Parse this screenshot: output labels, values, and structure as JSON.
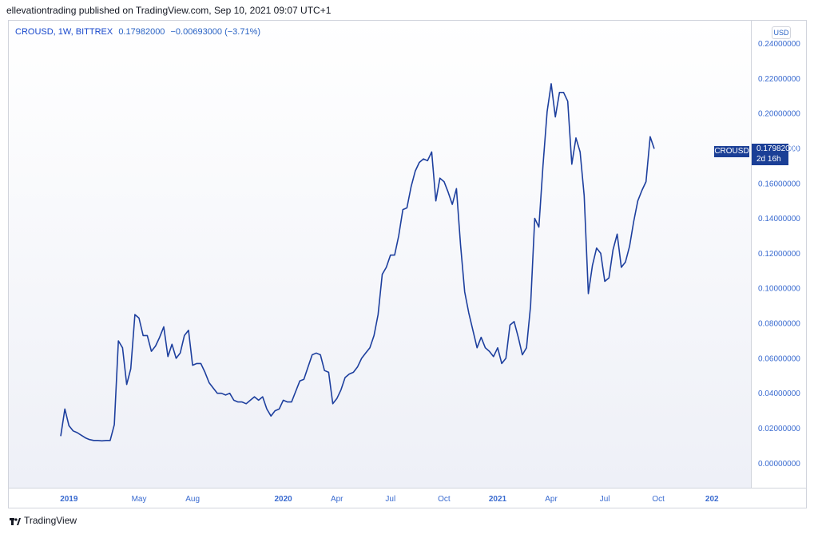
{
  "header": {
    "published_text": "ellevationtrading published on TradingView.com, Sep 10, 2021 09:07 UTC+1"
  },
  "legend": {
    "symbol": "CROUSD, 1W, BITTREX",
    "price": "0.17982000",
    "change": "−0.00693000 (−3.71%)"
  },
  "currency_button": "USD",
  "last_price_tag": {
    "symbol": "CROUSD",
    "price": "0.17982000",
    "countdown": "2d 16h"
  },
  "footer": {
    "brand": "TradingView"
  },
  "colors": {
    "line": "#1d3f9e",
    "axis_text": "#3a6bd0"
  },
  "chart_data": {
    "type": "line",
    "title": "CROUSD, 1W, BITTREX",
    "xlabel": "",
    "ylabel": "",
    "grid": false,
    "ylim": [
      -0.014,
      0.253
    ],
    "y_ticks": [
      "0.24000000",
      "0.22000000",
      "0.20000000",
      "0.18000000",
      "0.16000000",
      "0.14000000",
      "0.12000000",
      "0.10000000",
      "0.08000000",
      "0.06000000",
      "0.04000000",
      "0.02000000",
      "0.00000000"
    ],
    "y_tick_values": [
      0.24,
      0.22,
      0.2,
      0.18,
      0.16,
      0.14,
      0.12,
      0.1,
      0.08,
      0.06,
      0.04,
      0.02,
      0.0
    ],
    "x_ticks": [
      {
        "label": "2019",
        "week": 2,
        "major": true
      },
      {
        "label": "May",
        "week": 19,
        "major": false
      },
      {
        "label": "Aug",
        "week": 32,
        "major": false
      },
      {
        "label": "2020",
        "week": 54,
        "major": true
      },
      {
        "label": "Apr",
        "week": 67,
        "major": false
      },
      {
        "label": "Jul",
        "week": 80,
        "major": false
      },
      {
        "label": "Oct",
        "week": 93,
        "major": false
      },
      {
        "label": "2021",
        "week": 106,
        "major": true
      },
      {
        "label": "Apr",
        "week": 119,
        "major": false
      },
      {
        "label": "Jul",
        "week": 132,
        "major": false
      },
      {
        "label": "Oct",
        "week": 145,
        "major": false
      },
      {
        "label": "202",
        "week": 158,
        "major": true
      }
    ],
    "series": [
      {
        "values": [
          0.0155,
          0.031,
          0.0215,
          0.0185,
          0.0175,
          0.016,
          0.0145,
          0.0135,
          0.013,
          0.013,
          0.0128,
          0.013,
          0.013,
          0.022,
          0.07,
          0.066,
          0.045,
          0.054,
          0.085,
          0.083,
          0.073,
          0.073,
          0.064,
          0.067,
          0.072,
          0.078,
          0.061,
          0.068,
          0.06,
          0.063,
          0.073,
          0.076,
          0.056,
          0.057,
          0.057,
          0.052,
          0.046,
          0.043,
          0.04,
          0.04,
          0.039,
          0.04,
          0.036,
          0.035,
          0.035,
          0.034,
          0.036,
          0.038,
          0.036,
          0.038,
          0.031,
          0.027,
          0.03,
          0.031,
          0.036,
          0.035,
          0.035,
          0.041,
          0.047,
          0.048,
          0.055,
          0.062,
          0.063,
          0.062,
          0.053,
          0.052,
          0.034,
          0.037,
          0.042,
          0.049,
          0.051,
          0.052,
          0.055,
          0.06,
          0.063,
          0.066,
          0.073,
          0.085,
          0.108,
          0.112,
          0.119,
          0.119,
          0.13,
          0.145,
          0.146,
          0.158,
          0.167,
          0.172,
          0.174,
          0.173,
          0.178,
          0.15,
          0.163,
          0.161,
          0.155,
          0.148,
          0.157,
          0.125,
          0.098,
          0.086,
          0.076,
          0.066,
          0.072,
          0.066,
          0.064,
          0.061,
          0.066,
          0.057,
          0.06,
          0.079,
          0.081,
          0.072,
          0.062,
          0.066,
          0.09,
          0.14,
          0.135,
          0.17,
          0.201,
          0.217,
          0.198,
          0.212,
          0.212,
          0.207,
          0.171,
          0.186,
          0.178,
          0.153,
          0.097,
          0.113,
          0.123,
          0.12,
          0.104,
          0.106,
          0.122,
          0.131,
          0.112,
          0.115,
          0.124,
          0.138,
          0.15,
          0.156,
          0.161,
          0.1867,
          0.1798
        ]
      }
    ]
  }
}
